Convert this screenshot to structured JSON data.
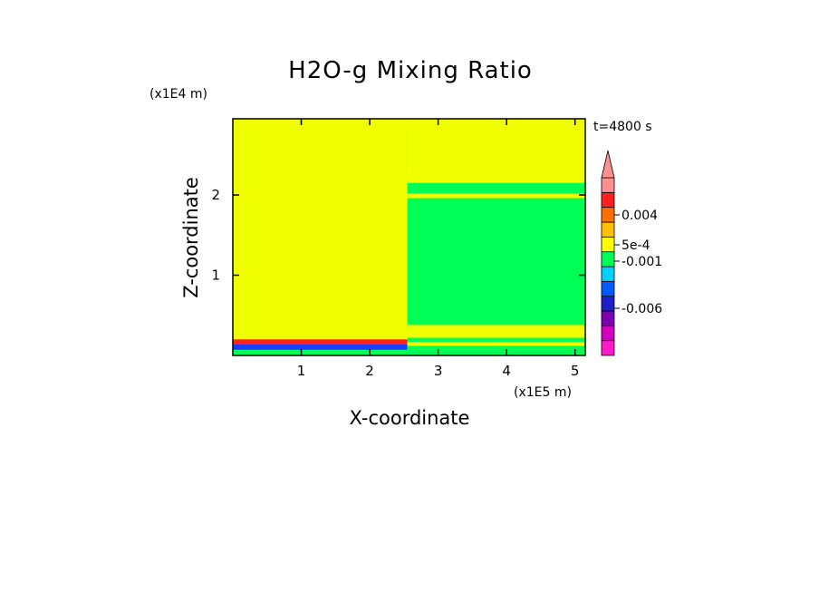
{
  "chart_data": {
    "type": "heatmap",
    "title": "H2O-g Mixing Ratio",
    "xlabel": "X-coordinate",
    "ylabel": "Z-coordinate",
    "x_unit": "(x1E5 m)",
    "z_unit": "(x1E4 m)",
    "time_label": "t=4800 s",
    "xlim": [
      0,
      5.15
    ],
    "ylim": [
      0,
      2.95
    ],
    "x_ticks": [
      "1",
      "2",
      "3",
      "4",
      "5"
    ],
    "x_tick_values": [
      1,
      2,
      3,
      4,
      5
    ],
    "y_ticks": [
      "1",
      "2"
    ],
    "y_tick_values": [
      1,
      2
    ],
    "colorbar": {
      "colors": [
        "#ff1cc8",
        "#d400c0",
        "#7a00b0",
        "#2020c8",
        "#005cff",
        "#00d0ff",
        "#00ff55",
        "#ffff00",
        "#ffc000",
        "#ff7000",
        "#ff2020",
        "#ff9090"
      ],
      "labels": [
        "0.004",
        "5e-4",
        "-0.001",
        "-0.006"
      ],
      "label_values": [
        0.004,
        0.0005,
        -0.001,
        -0.006
      ],
      "extend": "max"
    },
    "regions": [
      {
        "x": [
          0,
          2.55
        ],
        "z": [
          0,
          2.95
        ],
        "color": "#f0ff00"
      },
      {
        "x": [
          0,
          2.55
        ],
        "z": [
          0,
          0.07
        ],
        "color": "#00ff55"
      },
      {
        "x": [
          0,
          2.55
        ],
        "z": [
          0.07,
          0.14
        ],
        "color": "#1a3cff"
      },
      {
        "x": [
          0,
          2.55
        ],
        "z": [
          0.14,
          0.2
        ],
        "color": "#ff2020"
      },
      {
        "x": [
          2.55,
          5.15
        ],
        "z": [
          0,
          2.95
        ],
        "color": "#00ff55"
      },
      {
        "x": [
          2.55,
          5.15
        ],
        "z": [
          2.15,
          2.95
        ],
        "color": "#f0ff00"
      },
      {
        "x": [
          2.55,
          5.15
        ],
        "z": [
          1.96,
          2.02
        ],
        "color": "#f0ff00"
      },
      {
        "x": [
          2.55,
          5.15
        ],
        "z": [
          0.22,
          0.38
        ],
        "color": "#f0ff00"
      },
      {
        "x": [
          2.55,
          5.15
        ],
        "z": [
          0.12,
          0.17
        ],
        "color": "#f0ff00"
      }
    ]
  }
}
